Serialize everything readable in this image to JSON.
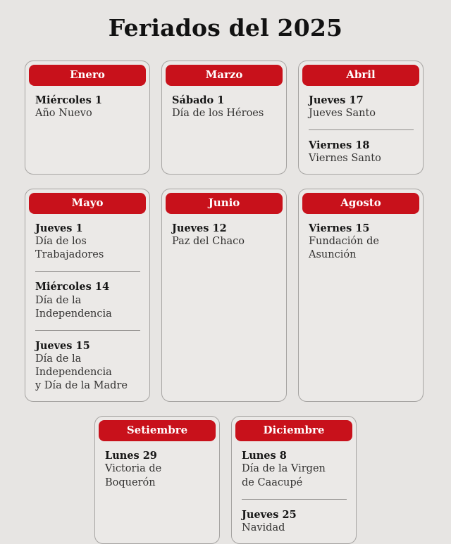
{
  "page": {
    "title": "Feriados del 2025",
    "background_color": "#e7e5e3",
    "card_background_color": "#ebe9e7",
    "card_border_color": "#a6a4a2",
    "accent_red": "#c8111b"
  },
  "months": [
    {
      "name": "Enero",
      "holidays": [
        {
          "date": "Miércoles 1",
          "name": "Año Nuevo"
        }
      ]
    },
    {
      "name": "Marzo",
      "holidays": [
        {
          "date": "Sábado 1",
          "name": "Día de los Héroes"
        }
      ]
    },
    {
      "name": "Abril",
      "holidays": [
        {
          "date": "Jueves 17",
          "name": "Jueves Santo"
        },
        {
          "date": "Viernes 18",
          "name": "Viernes Santo"
        }
      ]
    },
    {
      "name": "Mayo",
      "holidays": [
        {
          "date": "Jueves 1",
          "name": "Día de los Trabajadores"
        },
        {
          "date": "Miércoles 14",
          "name": "Día de la Independencia"
        },
        {
          "date": "Jueves 15",
          "name": "Día de la Independencia\ny Día de la Madre"
        }
      ]
    },
    {
      "name": "Junio",
      "holidays": [
        {
          "date": "Jueves 12",
          "name": "Paz del Chaco"
        }
      ]
    },
    {
      "name": "Agosto",
      "holidays": [
        {
          "date": "Viernes 15",
          "name": "Fundación de\nAsunción"
        }
      ]
    },
    {
      "name": "Setiembre",
      "holidays": [
        {
          "date": "Lunes 29",
          "name": "Victoria de Boquerón"
        }
      ]
    },
    {
      "name": "Diciembre",
      "holidays": [
        {
          "date": "Lunes 8",
          "name": "Día de la Virgen\nde Caacupé"
        },
        {
          "date": "Jueves 25",
          "name": "Navidad"
        }
      ]
    }
  ]
}
